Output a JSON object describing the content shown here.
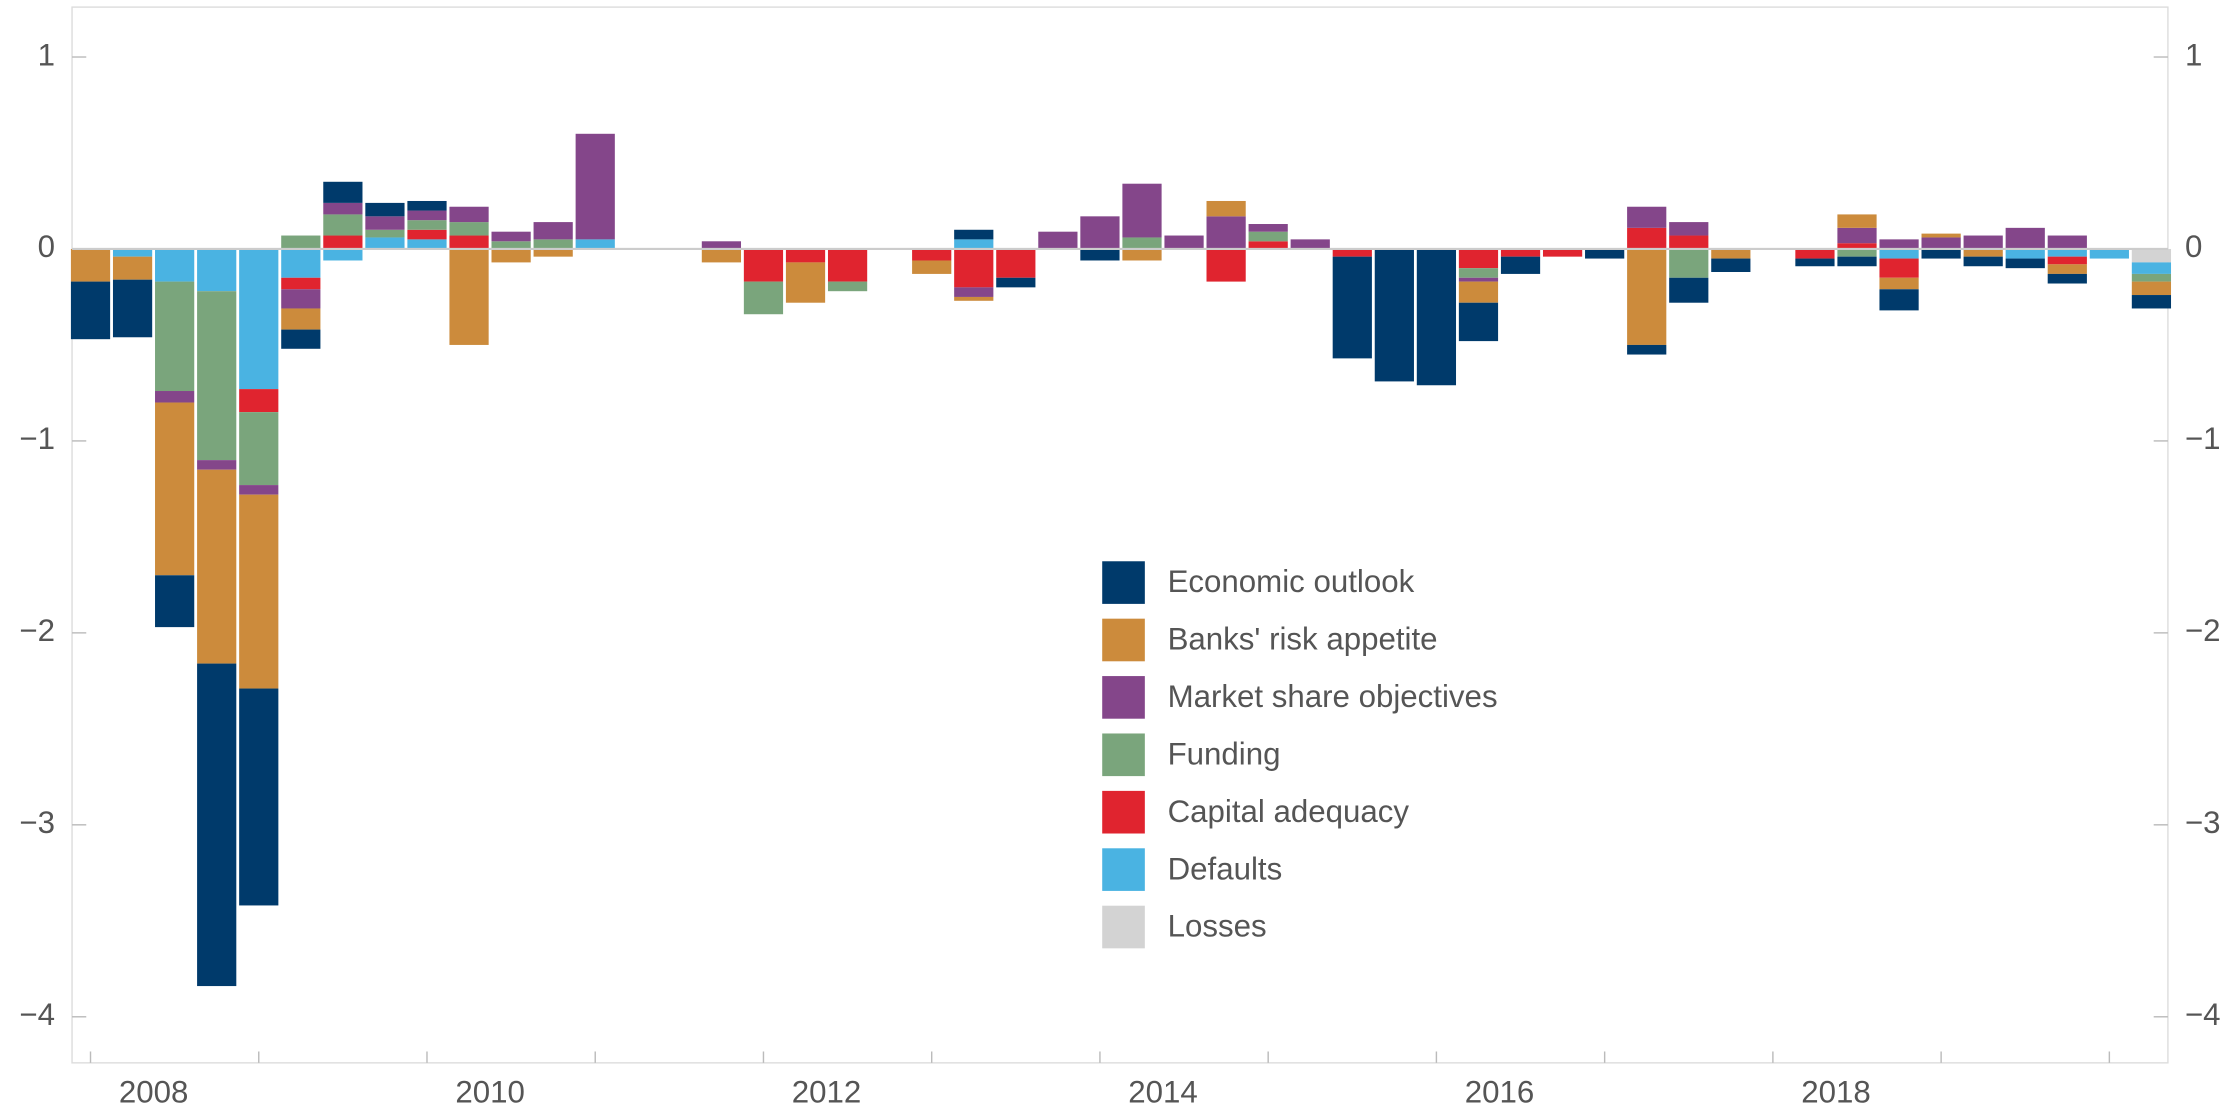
{
  "chart_data": {
    "type": "bar",
    "stacked": true,
    "categories": [
      "2008",
      null,
      null,
      null,
      null,
      null,
      null,
      null,
      "2010",
      null,
      null,
      null,
      null,
      null,
      null,
      null,
      "2012",
      null,
      null,
      null,
      null,
      null,
      null,
      null,
      "2014",
      null,
      null,
      null,
      null,
      null,
      null,
      null,
      "2016",
      null,
      null,
      null,
      null,
      null,
      null,
      null,
      "2018",
      null,
      null,
      null,
      null,
      null,
      null,
      null,
      null,
      null
    ],
    "ylim": [
      -4.24,
      1.26
    ],
    "yticks": [
      {
        "value": -4,
        "label": "−4"
      },
      {
        "value": -3,
        "label": "−3"
      },
      {
        "value": -2,
        "label": "−2"
      },
      {
        "value": -1,
        "label": "−1"
      },
      0,
      1
    ],
    "legend": "center",
    "series": [
      {
        "name": "Economic outlook",
        "color": "#003a6b",
        "values": [
          -0.3,
          -0.3,
          -0.27,
          -1.68,
          -1.13,
          -0.1,
          0.11,
          0.07,
          0.05,
          0,
          0,
          0,
          0,
          0,
          0,
          0,
          0,
          0,
          0,
          0,
          0,
          0.05,
          -0.05,
          0,
          -0.06,
          0,
          0,
          0,
          0,
          0,
          -0.53,
          -0.69,
          -0.71,
          -0.2,
          -0.09,
          0,
          -0.05,
          -0.05,
          -0.13,
          -0.07,
          0,
          -0.04,
          -0.05,
          -0.11,
          -0.05,
          -0.05,
          -0.05,
          -0.05,
          0,
          -0.07
        ]
      },
      {
        "name": "Banks' risk appetite",
        "color": "#cc8b3c",
        "values": [
          -0.17,
          -0.12,
          -0.9,
          -1.01,
          -1.01,
          -0.11,
          0,
          0,
          0,
          -0.5,
          -0.07,
          -0.04,
          0,
          0,
          0,
          -0.07,
          0,
          -0.21,
          0,
          0,
          -0.07,
          -0.02,
          0,
          0,
          0,
          -0.06,
          0,
          0.08,
          0,
          0,
          0,
          0,
          0,
          -0.11,
          0,
          0,
          0,
          -0.5,
          0,
          -0.05,
          0,
          0,
          0.07,
          -0.06,
          0.02,
          -0.04,
          0,
          -0.05,
          0,
          -0.07
        ]
      },
      {
        "name": "Market share objectives",
        "color": "#84468a",
        "values": [
          0,
          0,
          -0.06,
          -0.05,
          -0.05,
          -0.1,
          0.06,
          0.07,
          0.05,
          0.08,
          0.05,
          0.09,
          0.55,
          0,
          0,
          0.04,
          0,
          0,
          0,
          0,
          0,
          -0.05,
          0,
          0.09,
          0.17,
          0.28,
          0.07,
          0.17,
          0.04,
          0.05,
          0,
          0,
          0,
          -0.02,
          0,
          0,
          0,
          0.11,
          0.07,
          0,
          0,
          0,
          0.08,
          0.05,
          0.06,
          0.07,
          0.11,
          0.07,
          0,
          0
        ]
      },
      {
        "name": "Funding",
        "color": "#7aa57c",
        "values": [
          0,
          0,
          -0.57,
          -0.88,
          -0.38,
          0.07,
          0.11,
          0.04,
          0.05,
          0.07,
          0.04,
          0.05,
          0,
          0,
          0,
          0,
          -0.17,
          0,
          -0.05,
          0,
          0,
          0,
          0,
          0,
          0,
          0.06,
          0,
          0,
          0.05,
          0,
          0,
          0,
          0,
          -0.05,
          0,
          0,
          0,
          0,
          -0.15,
          0,
          0,
          0,
          -0.04,
          0,
          0,
          0,
          0,
          0,
          0,
          -0.04
        ]
      },
      {
        "name": "Capital adequacy",
        "color": "#e0242f",
        "values": [
          0,
          0,
          0,
          0,
          -0.12,
          -0.06,
          0.07,
          0,
          0.05,
          0.07,
          0,
          0,
          0,
          0,
          0,
          0,
          -0.17,
          -0.07,
          -0.17,
          0,
          -0.06,
          -0.2,
          -0.15,
          0,
          0,
          0,
          0,
          -0.17,
          0.04,
          0,
          -0.04,
          0,
          0,
          -0.1,
          -0.04,
          -0.04,
          0,
          0.11,
          0.07,
          0,
          0,
          -0.05,
          0.03,
          -0.1,
          0,
          0,
          0,
          -0.04,
          0,
          0
        ]
      },
      {
        "name": "Defaults",
        "color": "#4ab3e2",
        "values": [
          0,
          -0.04,
          -0.17,
          -0.22,
          -0.73,
          -0.15,
          -0.06,
          0.06,
          0.05,
          0,
          0,
          0,
          0.05,
          0,
          0,
          0,
          0,
          0,
          0,
          0,
          0,
          0.05,
          0,
          0,
          0,
          0,
          0,
          0,
          0,
          0,
          0,
          0,
          0,
          0,
          0,
          0,
          0,
          0,
          0,
          0,
          0,
          0,
          0,
          -0.05,
          0,
          0,
          -0.05,
          -0.04,
          -0.05,
          -0.06
        ]
      },
      {
        "name": "Losses",
        "color": "#d3d3d3",
        "values": [
          0,
          0,
          0,
          0,
          0,
          0,
          0,
          0,
          0,
          0,
          0,
          0,
          0,
          0,
          0,
          0,
          0,
          0,
          0,
          0,
          0,
          0,
          0,
          0,
          0,
          0,
          0,
          0,
          0,
          0,
          0,
          0,
          0,
          0,
          0,
          0,
          0,
          0,
          0,
          0,
          0,
          0,
          0,
          0,
          0,
          0,
          0,
          0,
          0,
          -0.07
        ]
      }
    ]
  }
}
